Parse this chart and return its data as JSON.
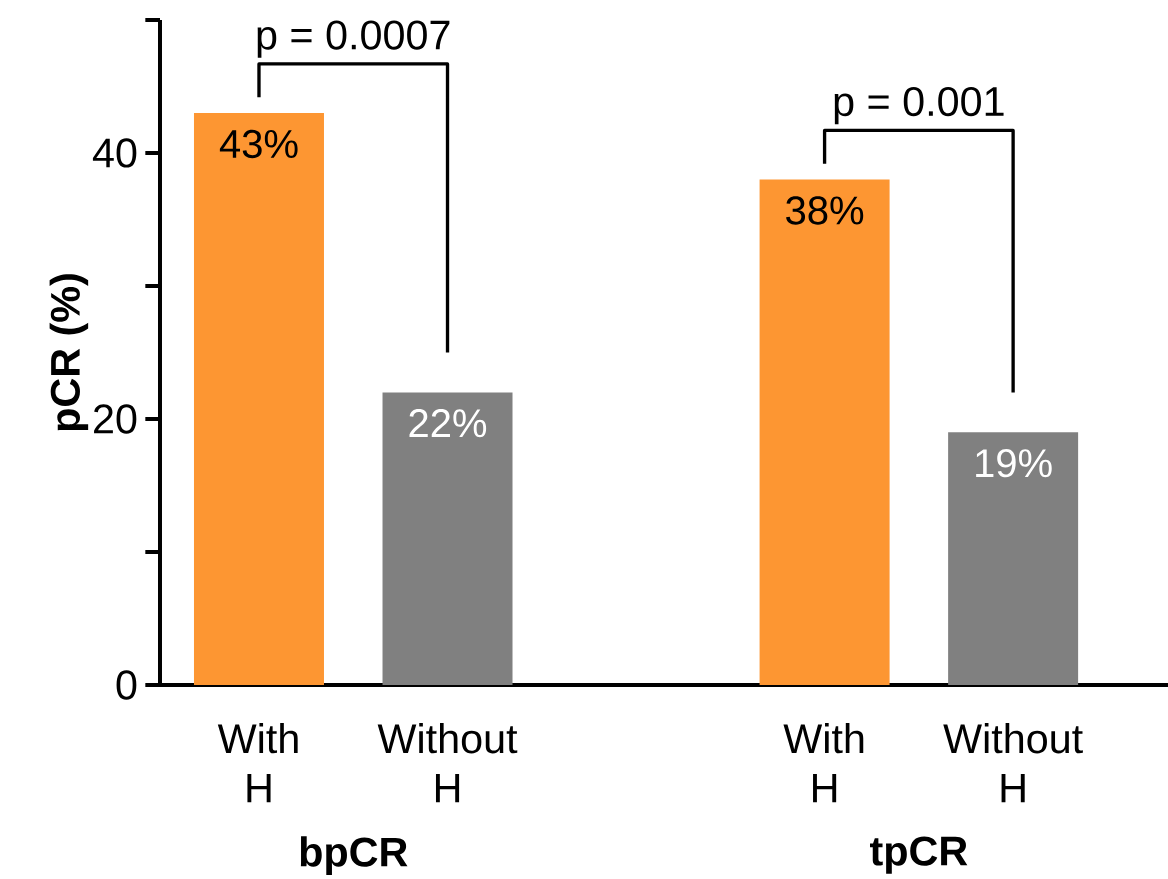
{
  "chart_data": {
    "type": "bar",
    "ylabel": "pCR (%)",
    "categories": [
      "With H",
      "Without H",
      null,
      "With H",
      "Without H"
    ],
    "values": [
      43,
      22,
      null,
      38,
      19
    ],
    "colors": [
      "#fd9632",
      "#808080",
      null,
      "#fd9632",
      "#808080"
    ],
    "value_labels": [
      "43%",
      "22%",
      null,
      "38%",
      "19%"
    ],
    "ylim": [
      0,
      50
    ],
    "yticks": [
      0,
      {
        "value": 10,
        "label": null
      },
      20,
      {
        "value": 30,
        "label": null
      },
      40,
      {
        "value": 50,
        "label": null
      }
    ],
    "annotations": [
      "p = 0.0007",
      "p = 0.001",
      "bpCR",
      "tpCR"
    ],
    "grid": false
  }
}
